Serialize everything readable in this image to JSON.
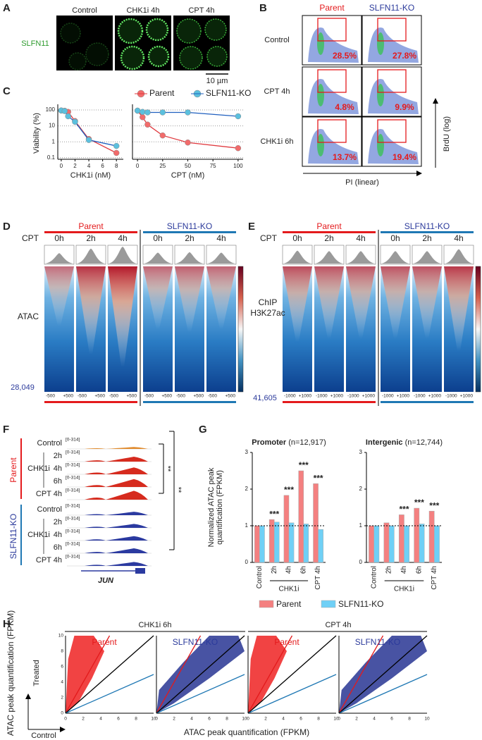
{
  "panel_labels": [
    "A",
    "B",
    "C",
    "D",
    "E",
    "F",
    "G",
    "H"
  ],
  "panel_a": {
    "columns": [
      "Control",
      "CHK1i 4h",
      "CPT 4h"
    ],
    "row_label": "SLFN11",
    "scale_bar": "10 µm"
  },
  "panel_b": {
    "columns": [
      "Parent",
      "SLFN11-KO"
    ],
    "rows": [
      "Control",
      "CPT 4h",
      "CHK1i 6h"
    ],
    "percentages": [
      [
        "28.5%",
        "27.8%"
      ],
      [
        "4.8%",
        "9.9%"
      ],
      [
        "13.7%",
        "19.4%"
      ]
    ],
    "x_label": "PI (linear)",
    "y_label": "BrdU (log)"
  },
  "panel_d": {
    "groups": [
      "Parent",
      "SLFN11-KO"
    ],
    "row_title": "CPT",
    "times": [
      "0h",
      "2h",
      "4h",
      "0h",
      "2h",
      "4h"
    ],
    "label": [
      "ATAC"
    ],
    "count": "28,049",
    "tick_left": "-500",
    "tick_right": "+500"
  },
  "panel_e": {
    "groups": [
      "Parent",
      "SLFN11-KO"
    ],
    "row_title": "CPT",
    "times": [
      "0h",
      "2h",
      "4h",
      "0h",
      "2h",
      "4h"
    ],
    "label": [
      "ChIP",
      "H3K27ac"
    ],
    "count": "41,605",
    "tick_left": "-1000",
    "tick_right": "+1000"
  },
  "panel_f": {
    "groups": [
      {
        "name": "Parent",
        "control": "Control",
        "treatment": "CHK1i",
        "times": [
          "2h",
          "4h",
          "6h"
        ],
        "cpt": "CPT 4h"
      },
      {
        "name": "SLFN11-KO",
        "control": "Control",
        "treatment": "CHK1i",
        "times": [
          "2h",
          "4h",
          "6h"
        ],
        "cpt": "CPT 4h"
      }
    ],
    "range": "[0-314]",
    "gene": "JUN",
    "significance": [
      "**",
      "**"
    ]
  },
  "panel_h": {
    "headers": [
      "CHK1i 6h",
      "CPT 4h"
    ],
    "plot_titles": [
      "Parent",
      "SLFN11-KO",
      "Parent",
      "SLFN11-KO"
    ],
    "ticks": [
      "0",
      "2",
      "4",
      "6",
      "8",
      "10"
    ],
    "x_label": "ATAC peak quantification (FPKM)",
    "y_label": "ATAC peak quantification (FPKM)",
    "x_arrow": "Control",
    "y_arrow": "Treated"
  },
  "chart_data": [
    {
      "type": "line",
      "xlabel": "CHK1i (nM)",
      "ylabel": "Viability (%)",
      "log_y": true,
      "legend": "top",
      "grid": true,
      "x": [
        0,
        0.5,
        1,
        2,
        4,
        8
      ],
      "series": [
        {
          "name": "Parent",
          "color": "#f26b6b",
          "values": [
            92,
            88,
            75,
            20,
            1.5,
            0.2
          ]
        },
        {
          "name": "SLFN11-KO",
          "color": "#5bc0de",
          "values": [
            92,
            85,
            40,
            18,
            1.3,
            0.55
          ]
        }
      ],
      "xlim": [
        -0.5,
        9
      ],
      "xticks": [
        0,
        2,
        4,
        6,
        8
      ],
      "ylim": [
        0.08,
        150
      ],
      "yticks": [
        0.1,
        1,
        10,
        100
      ]
    },
    {
      "type": "line",
      "xlabel": "CPT (nM)",
      "log_y": true,
      "grid": true,
      "x": [
        0,
        5,
        10,
        25,
        50,
        100
      ],
      "series": [
        {
          "color": "#f26b6b",
          "values": [
            90,
            35,
            12,
            2.5,
            0.9,
            0.4
          ]
        },
        {
          "color": "#5bc0de",
          "values": [
            90,
            75,
            70,
            70,
            70,
            40
          ]
        }
      ],
      "xlim": [
        -5,
        105
      ],
      "xticks": [
        0,
        25,
        50,
        75,
        100
      ],
      "ylim": [
        0.08,
        150
      ],
      "yticks": [
        0.1,
        1,
        10,
        100
      ]
    },
    {
      "type": "bar",
      "title": "Promoter",
      "subtitle": "(n=12,917)",
      "ylabel": [
        "Normalized ATAC peak",
        "quantification (FPKM)"
      ],
      "legend": "bottom",
      "categories": [
        "Control",
        "2h",
        "4h",
        "6h",
        "CPT 4h"
      ],
      "group_label": "CHK1i",
      "series": [
        {
          "name": "Parent",
          "color": "#f48080",
          "values": [
            1,
            1.17,
            1.83,
            2.5,
            2.15
          ]
        },
        {
          "name": "SLFN11-KO",
          "color": "#6fd0f6",
          "values": [
            1,
            1.1,
            1.08,
            1.05,
            0.9
          ]
        }
      ],
      "annotations": [
        null,
        "***",
        "***",
        "***",
        "***"
      ],
      "ylim": [
        0,
        3
      ],
      "yticks": [
        0,
        1,
        2,
        3
      ],
      "hline": 1
    },
    {
      "type": "bar",
      "title": "Intergenic",
      "subtitle": "(n=12,744)",
      "categories": [
        "Control",
        "2h",
        "4h",
        "6h",
        "CPT 4h"
      ],
      "group_label": "CHK1i",
      "series": [
        {
          "color": "#f48080",
          "values": [
            1,
            1.08,
            1.3,
            1.48,
            1.4
          ]
        },
        {
          "color": "#6fd0f6",
          "values": [
            1,
            1,
            1,
            1.05,
            1
          ]
        }
      ],
      "annotations": [
        null,
        null,
        "***",
        "***",
        "***"
      ],
      "ylim": [
        0,
        3
      ],
      "yticks": [
        0,
        1,
        2,
        3
      ],
      "hline": 1
    }
  ]
}
